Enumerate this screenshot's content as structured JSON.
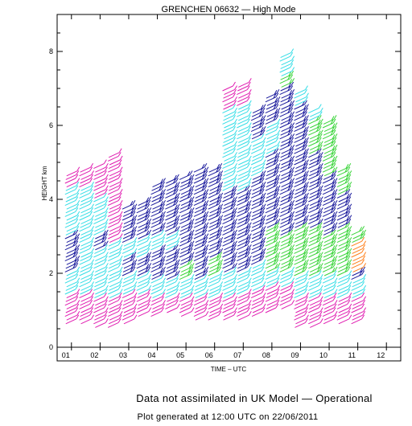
{
  "chart_data": {
    "type": "scatter",
    "title": "GRENCHEN 06632 — High Mode",
    "xlabel": "TIME – UTC",
    "ylabel": "HEIGHT km",
    "x_tick_labels": [
      "01",
      "02",
      "03",
      "04",
      "05",
      "06",
      "07",
      "08",
      "09",
      "10",
      "11",
      "12"
    ],
    "y_tick_labels": [
      "0",
      "2",
      "4",
      "6",
      "8"
    ],
    "xlim": [
      0.5,
      12.5
    ],
    "ylim": [
      0,
      9
    ],
    "grid": false,
    "legend": "none",
    "series_colors": {
      "magenta": "#e01bb0",
      "cyan": "#33dde6",
      "navy": "#1a1a9c",
      "green": "#3ad43a",
      "orange": "#ff7f1a"
    },
    "profiles": [
      {
        "time": 1.0,
        "bottom": 0.7,
        "top": 4.7,
        "segments": [
          {
            "color": "magenta",
            "from": 0.7,
            "to": 1.4
          },
          {
            "color": "cyan",
            "from": 1.4,
            "to": 2.0
          },
          {
            "color": "navy",
            "from": 2.0,
            "to": 3.0
          },
          {
            "color": "cyan",
            "from": 3.0,
            "to": 4.3
          },
          {
            "color": "magenta",
            "from": 4.3,
            "to": 4.7
          }
        ]
      },
      {
        "time": 1.5,
        "bottom": 0.7,
        "top": 4.8,
        "segments": [
          {
            "color": "magenta",
            "from": 0.7,
            "to": 1.4
          },
          {
            "color": "cyan",
            "from": 1.4,
            "to": 4.3
          },
          {
            "color": "magenta",
            "from": 4.3,
            "to": 4.8
          }
        ]
      },
      {
        "time": 2.0,
        "bottom": 0.6,
        "top": 4.9,
        "segments": [
          {
            "color": "magenta",
            "from": 0.6,
            "to": 1.3
          },
          {
            "color": "cyan",
            "from": 1.3,
            "to": 2.6
          },
          {
            "color": "navy",
            "from": 2.6,
            "to": 3.0
          },
          {
            "color": "cyan",
            "from": 3.0,
            "to": 4.0
          },
          {
            "color": "magenta",
            "from": 4.0,
            "to": 4.9
          }
        ]
      },
      {
        "time": 2.5,
        "bottom": 0.6,
        "top": 5.2,
        "segments": [
          {
            "color": "magenta",
            "from": 0.6,
            "to": 1.3
          },
          {
            "color": "cyan",
            "from": 1.3,
            "to": 2.8
          },
          {
            "color": "magenta",
            "from": 2.8,
            "to": 5.2
          }
        ]
      },
      {
        "time": 3.0,
        "bottom": 0.7,
        "top": 3.8,
        "segments": [
          {
            "color": "magenta",
            "from": 0.7,
            "to": 1.4
          },
          {
            "color": "cyan",
            "from": 1.4,
            "to": 1.9
          },
          {
            "color": "navy",
            "from": 1.9,
            "to": 2.4
          },
          {
            "color": "cyan",
            "from": 2.4,
            "to": 2.8
          },
          {
            "color": "navy",
            "from": 2.8,
            "to": 3.8
          }
        ]
      },
      {
        "time": 3.5,
        "bottom": 0.9,
        "top": 3.9,
        "segments": [
          {
            "color": "magenta",
            "from": 0.9,
            "to": 1.4
          },
          {
            "color": "cyan",
            "from": 1.4,
            "to": 1.9
          },
          {
            "color": "navy",
            "from": 1.9,
            "to": 2.4
          },
          {
            "color": "cyan",
            "from": 2.4,
            "to": 2.9
          },
          {
            "color": "navy",
            "from": 2.9,
            "to": 3.9
          }
        ]
      },
      {
        "time": 4.0,
        "bottom": 0.9,
        "top": 4.4,
        "segments": [
          {
            "color": "magenta",
            "from": 0.9,
            "to": 1.3
          },
          {
            "color": "cyan",
            "from": 1.3,
            "to": 1.8
          },
          {
            "color": "navy",
            "from": 1.8,
            "to": 2.6
          },
          {
            "color": "cyan",
            "from": 2.6,
            "to": 3.0
          },
          {
            "color": "navy",
            "from": 3.0,
            "to": 4.4
          }
        ]
      },
      {
        "time": 4.5,
        "bottom": 1.0,
        "top": 4.5,
        "segments": [
          {
            "color": "magenta",
            "from": 1.0,
            "to": 1.3
          },
          {
            "color": "cyan",
            "from": 1.3,
            "to": 1.8
          },
          {
            "color": "navy",
            "from": 1.8,
            "to": 2.6
          },
          {
            "color": "cyan",
            "from": 2.6,
            "to": 3.0
          },
          {
            "color": "navy",
            "from": 3.0,
            "to": 4.5
          }
        ]
      },
      {
        "time": 5.0,
        "bottom": 0.9,
        "top": 4.6,
        "segments": [
          {
            "color": "magenta",
            "from": 0.9,
            "to": 1.3
          },
          {
            "color": "cyan",
            "from": 1.3,
            "to": 1.8
          },
          {
            "color": "green",
            "from": 1.8,
            "to": 2.2
          },
          {
            "color": "navy",
            "from": 2.2,
            "to": 4.6
          }
        ]
      },
      {
        "time": 5.5,
        "bottom": 0.8,
        "top": 4.8,
        "segments": [
          {
            "color": "magenta",
            "from": 0.8,
            "to": 1.3
          },
          {
            "color": "cyan",
            "from": 1.3,
            "to": 1.8
          },
          {
            "color": "navy",
            "from": 1.8,
            "to": 4.8
          }
        ]
      },
      {
        "time": 6.0,
        "bottom": 0.8,
        "top": 4.8,
        "segments": [
          {
            "color": "magenta",
            "from": 0.8,
            "to": 1.3
          },
          {
            "color": "cyan",
            "from": 1.3,
            "to": 1.9
          },
          {
            "color": "green",
            "from": 1.9,
            "to": 2.4
          },
          {
            "color": "navy",
            "from": 2.4,
            "to": 4.8
          }
        ]
      },
      {
        "time": 6.5,
        "bottom": 0.8,
        "top": 7.0,
        "segments": [
          {
            "color": "magenta",
            "from": 0.8,
            "to": 1.3
          },
          {
            "color": "cyan",
            "from": 1.3,
            "to": 2.0
          },
          {
            "color": "navy",
            "from": 2.0,
            "to": 4.2
          },
          {
            "color": "cyan",
            "from": 4.2,
            "to": 6.4
          },
          {
            "color": "magenta",
            "from": 6.4,
            "to": 7.0
          }
        ]
      },
      {
        "time": 7.0,
        "bottom": 0.8,
        "top": 7.1,
        "segments": [
          {
            "color": "magenta",
            "from": 0.8,
            "to": 1.4
          },
          {
            "color": "cyan",
            "from": 1.4,
            "to": 2.0
          },
          {
            "color": "navy",
            "from": 2.0,
            "to": 4.2
          },
          {
            "color": "cyan",
            "from": 4.2,
            "to": 6.5
          },
          {
            "color": "magenta",
            "from": 6.5,
            "to": 7.1
          }
        ]
      },
      {
        "time": 7.5,
        "bottom": 0.9,
        "top": 6.4,
        "segments": [
          {
            "color": "magenta",
            "from": 0.9,
            "to": 1.5
          },
          {
            "color": "cyan",
            "from": 1.5,
            "to": 2.2
          },
          {
            "color": "navy",
            "from": 2.2,
            "to": 4.6
          },
          {
            "color": "cyan",
            "from": 4.6,
            "to": 5.6
          },
          {
            "color": "navy",
            "from": 5.6,
            "to": 6.4
          }
        ]
      },
      {
        "time": 8.0,
        "bottom": 1.0,
        "top": 6.8,
        "segments": [
          {
            "color": "magenta",
            "from": 1.0,
            "to": 1.6
          },
          {
            "color": "cyan",
            "from": 1.6,
            "to": 2.0
          },
          {
            "color": "green",
            "from": 2.0,
            "to": 3.2
          },
          {
            "color": "navy",
            "from": 3.2,
            "to": 5.2
          },
          {
            "color": "cyan",
            "from": 5.2,
            "to": 6.0
          },
          {
            "color": "navy",
            "from": 6.0,
            "to": 6.8
          }
        ]
      },
      {
        "time": 8.5,
        "bottom": 1.1,
        "top": 7.9,
        "segments": [
          {
            "color": "magenta",
            "from": 1.1,
            "to": 1.6
          },
          {
            "color": "cyan",
            "from": 1.6,
            "to": 2.0
          },
          {
            "color": "green",
            "from": 2.0,
            "to": 3.0
          },
          {
            "color": "navy",
            "from": 3.0,
            "to": 7.0
          },
          {
            "color": "green",
            "from": 7.0,
            "to": 7.3
          },
          {
            "color": "cyan",
            "from": 7.3,
            "to": 7.9
          }
        ]
      },
      {
        "time": 9.0,
        "bottom": 0.6,
        "top": 6.9,
        "segments": [
          {
            "color": "magenta",
            "from": 0.6,
            "to": 1.3
          },
          {
            "color": "cyan",
            "from": 1.3,
            "to": 1.9
          },
          {
            "color": "green",
            "from": 1.9,
            "to": 3.2
          },
          {
            "color": "navy",
            "from": 3.2,
            "to": 6.5
          },
          {
            "color": "cyan",
            "from": 6.5,
            "to": 6.9
          }
        ]
      },
      {
        "time": 9.5,
        "bottom": 0.6,
        "top": 6.4,
        "segments": [
          {
            "color": "magenta",
            "from": 0.6,
            "to": 1.3
          },
          {
            "color": "cyan",
            "from": 1.3,
            "to": 1.9
          },
          {
            "color": "green",
            "from": 1.9,
            "to": 3.2
          },
          {
            "color": "navy",
            "from": 3.2,
            "to": 5.2
          },
          {
            "color": "green",
            "from": 5.2,
            "to": 6.1
          },
          {
            "color": "cyan",
            "from": 6.1,
            "to": 6.4
          }
        ]
      },
      {
        "time": 10.0,
        "bottom": 0.7,
        "top": 6.1,
        "segments": [
          {
            "color": "magenta",
            "from": 0.7,
            "to": 1.3
          },
          {
            "color": "cyan",
            "from": 1.3,
            "to": 1.9
          },
          {
            "color": "green",
            "from": 1.9,
            "to": 3.0
          },
          {
            "color": "navy",
            "from": 3.0,
            "to": 4.6
          },
          {
            "color": "green",
            "from": 4.6,
            "to": 6.1
          }
        ]
      },
      {
        "time": 10.5,
        "bottom": 0.7,
        "top": 4.8,
        "segments": [
          {
            "color": "magenta",
            "from": 0.7,
            "to": 1.3
          },
          {
            "color": "cyan",
            "from": 1.3,
            "to": 1.9
          },
          {
            "color": "green",
            "from": 1.9,
            "to": 3.2
          },
          {
            "color": "navy",
            "from": 3.2,
            "to": 4.1
          },
          {
            "color": "green",
            "from": 4.1,
            "to": 4.8
          }
        ]
      },
      {
        "time": 11.0,
        "bottom": 0.7,
        "top": 3.1,
        "segments": [
          {
            "color": "magenta",
            "from": 0.7,
            "to": 1.3
          },
          {
            "color": "cyan",
            "from": 1.3,
            "to": 1.8
          },
          {
            "color": "navy",
            "from": 1.8,
            "to": 2.0
          },
          {
            "color": "orange",
            "from": 2.0,
            "to": 2.8
          },
          {
            "color": "green",
            "from": 2.8,
            "to": 3.1
          }
        ]
      }
    ]
  },
  "footer": {
    "line1": "Data not assimilated in UK Model — Operational",
    "line2": "Plot generated at 12:00 UTC on 22/06/2011"
  }
}
